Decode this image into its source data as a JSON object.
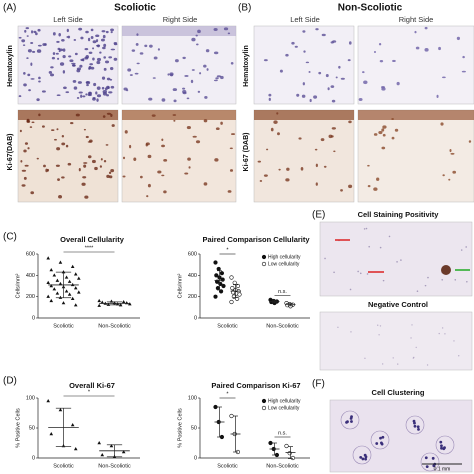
{
  "panels": {
    "A": {
      "label": "(A)",
      "title": "Scoliotic",
      "columns": [
        "Left Side",
        "Right Side"
      ],
      "rows": [
        "Hematoxylin",
        "Ki-67(DAB)"
      ]
    },
    "B": {
      "label": "(B)",
      "title": "Non-Scoliotic",
      "columns": [
        "Left Side",
        "Right Side"
      ],
      "rows": [
        "Hematoxylin",
        "Ki-67 (DAB)"
      ]
    },
    "C": {
      "label": "(C)"
    },
    "D": {
      "label": "(D)"
    },
    "E": {
      "label": "(E)",
      "title": "Cell Staining Positivity",
      "subtitle": "Negative Control"
    },
    "F": {
      "label": "(F)",
      "title": "Cell Clustering",
      "scale": "0.1 mm"
    }
  },
  "chart_data": [
    {
      "type": "scatter",
      "title": "Overall Cellularity",
      "y_label": "Cells/mm²",
      "categories": [
        "Scoliotic",
        "Non-Scoliotic"
      ],
      "values": [
        [
          560,
          520,
          480,
          450,
          430,
          410,
          400,
          380,
          370,
          350,
          340,
          330,
          320,
          310,
          300,
          290,
          280,
          270,
          250,
          240,
          230,
          220,
          200,
          190,
          180,
          160,
          140,
          120
        ],
        [
          160,
          155,
          150,
          145,
          140,
          140,
          135,
          130,
          130,
          125,
          120,
          115
        ]
      ],
      "means": [
        310,
        137
      ],
      "sd": [
        120,
        14
      ],
      "annotation": "****",
      "color": "#111",
      "ylim": [
        0,
        600
      ],
      "yticks": [
        0,
        200,
        400,
        600
      ]
    },
    {
      "type": "paired",
      "title": "Paired Comparison Cellularity",
      "y_label": "Cells/mm²",
      "categories": [
        "Scoliotic",
        "Non-Scoliotic"
      ],
      "series": [
        {
          "name": "High cellularity",
          "color": "#111",
          "values": [
            [
              520,
              460,
              420,
              400,
              380,
              360,
              340,
              320,
              300,
              280,
              250,
              200
            ],
            [
              170,
              160,
              155,
              150,
              140
            ]
          ],
          "means": [
            353,
            155
          ],
          "sd": [
            90,
            11
          ]
        },
        {
          "name": "Low cellularity",
          "color": "#111",
          "values": [
            [
              380,
              330,
              300,
              280,
              260,
              250,
              240,
              230,
              220,
              200,
              180,
              150
            ],
            [
              140,
              130,
              125,
              120,
              110
            ]
          ],
          "means": [
            252,
            125
          ],
          "sd": [
            60,
            11
          ]
        }
      ],
      "annotations": [
        "*",
        "n.s."
      ],
      "ylim": [
        0,
        600
      ],
      "yticks": [
        0,
        200,
        400,
        600
      ]
    },
    {
      "type": "scatter",
      "title": "Overall Ki-67",
      "y_label": "% Positive Cells",
      "categories": [
        "Scoliotic",
        "Non-Scoliotic"
      ],
      "values": [
        [
          95,
          80,
          55,
          40,
          20,
          15
        ],
        [
          25,
          20,
          10,
          5,
          2
        ]
      ],
      "means": [
        51,
        12
      ],
      "sd": [
        32,
        10
      ],
      "annotation": "*",
      "color": "#111",
      "ylim": [
        0,
        100
      ],
      "yticks": [
        0,
        50,
        100
      ]
    },
    {
      "type": "paired",
      "title": "Paired Comparison Ki-67",
      "y_label": "% Positive Cells",
      "categories": [
        "Scoliotic",
        "Non-Scoliotic"
      ],
      "series": [
        {
          "name": "High cellularity",
          "color": "#111",
          "values": [
            [
              85,
              60,
              35
            ],
            [
              25,
              15,
              5
            ]
          ],
          "means": [
            60,
            15
          ],
          "sd": [
            25,
            10
          ]
        },
        {
          "name": "Low cellularity",
          "color": "#111",
          "values": [
            [
              70,
              40,
              10
            ],
            [
              20,
              8,
              0
            ]
          ],
          "means": [
            40,
            9
          ],
          "sd": [
            30,
            10
          ]
        }
      ],
      "annotations": [
        "*",
        "n.s."
      ],
      "ylim": [
        0,
        100
      ],
      "yticks": [
        0,
        50,
        100
      ]
    }
  ]
}
